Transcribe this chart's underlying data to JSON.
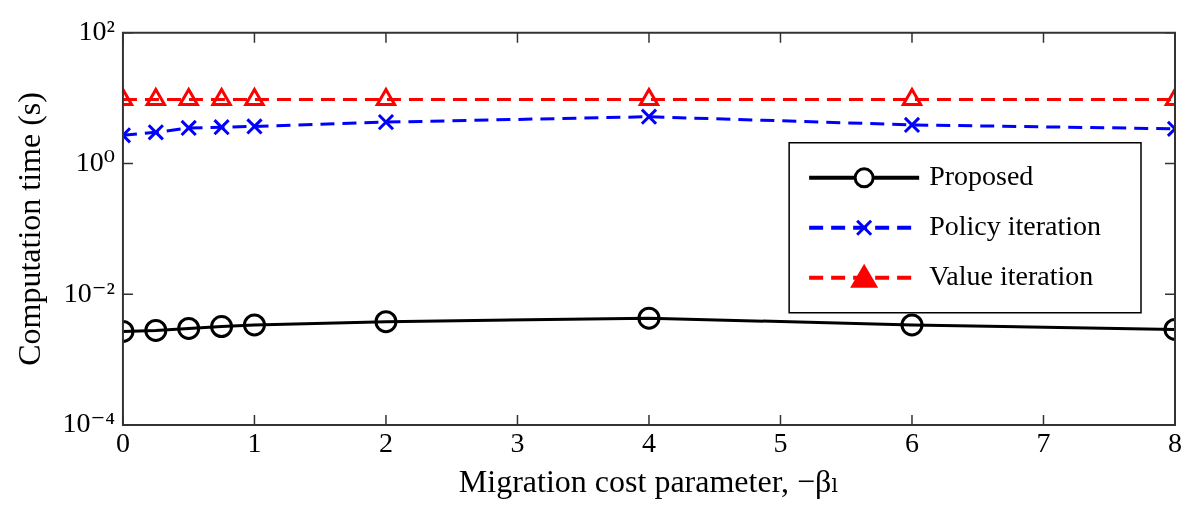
{
  "chart_data": {
    "type": "line",
    "xlabel": "Migration cost parameter, −βₗ",
    "ylabel": "Computation time (s)",
    "log": "y",
    "x": [
      0,
      0.25,
      0.5,
      0.75,
      1,
      2,
      4,
      6,
      8
    ],
    "xlim": [
      0,
      8
    ],
    "xticks": [
      0,
      1,
      2,
      3,
      4,
      5,
      6,
      7,
      8
    ],
    "ylim": [
      0.0001,
      100
    ],
    "yticks": [
      {
        "value": 0.0001,
        "label": "10⁻⁴"
      },
      {
        "value": 0.01,
        "label": "10⁻²"
      },
      {
        "value": 1,
        "label": "10⁰"
      },
      {
        "value": 100,
        "label": "10²"
      }
    ],
    "grid": false,
    "legend": "top right",
    "series": [
      {
        "name": "Proposed",
        "color": "#000000",
        "marker": "circle",
        "line_style": "solid",
        "values": [
          0.0027,
          0.0028,
          0.003,
          0.0032,
          0.0034,
          0.0038,
          0.0043,
          0.0034,
          0.0029
        ]
      },
      {
        "name": "Policy iteration",
        "color": "#0000ff",
        "marker": "cross",
        "line_style": "dashed",
        "values": [
          2.7,
          3.0,
          3.5,
          3.6,
          3.7,
          4.3,
          5.2,
          3.9,
          3.4
        ]
      },
      {
        "name": "Value iteration",
        "color": "#ff0000",
        "marker": "triangle",
        "line_style": "dashed",
        "values": [
          9.5,
          9.5,
          9.5,
          9.5,
          9.5,
          9.5,
          9.5,
          9.5,
          9.5
        ]
      }
    ]
  }
}
